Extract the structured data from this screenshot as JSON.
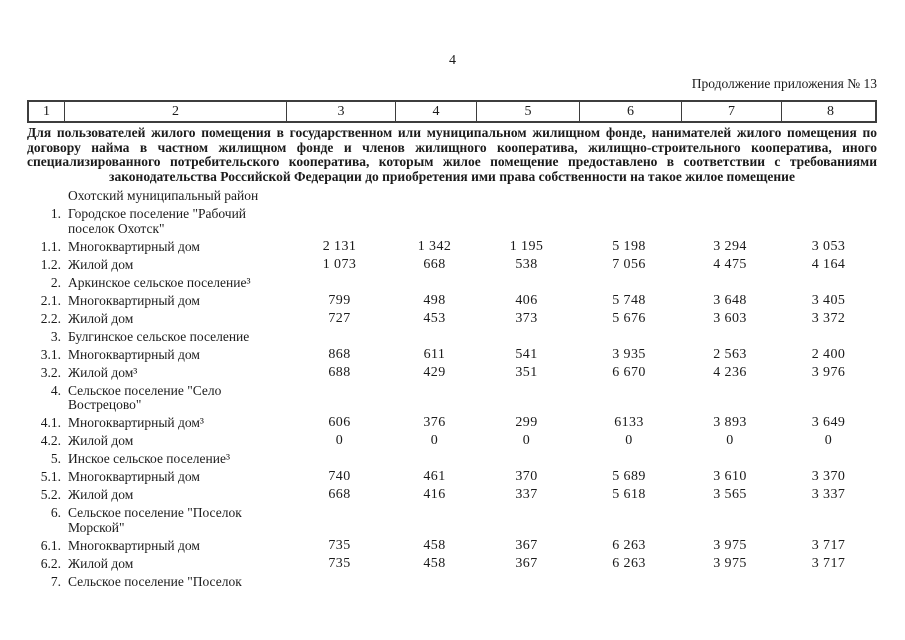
{
  "page": {
    "page_number": "4",
    "continuation_label": "Продолжение приложения № 13"
  },
  "table": {
    "column_numbers": [
      "1",
      "2",
      "3",
      "4",
      "5",
      "6",
      "7",
      "8"
    ],
    "category_note": "Для пользователей жилого помещения в государственном или муниципальном жилищном фонде, нанимателей жилого помещения по договору найма в частном жилищном фонде и членов жилищного кооператива, жилищно-строительного кооператива, иного специализированного потребительского кооператива, которым жилое помещение предоставлено в соответствии с требованиями законодательства Российской Федерации до приобретения ими права собственности на такое жилое помещение",
    "rows": [
      {
        "num": "",
        "name": "Охотский муниципальный район",
        "values": [
          "",
          "",
          "",
          "",
          "",
          ""
        ]
      },
      {
        "num": "1.",
        "name": "Городское поселение \"Рабочий поселок Охотск\"",
        "values": [
          "",
          "",
          "",
          "",
          "",
          ""
        ]
      },
      {
        "num": "1.1.",
        "name": "Многоквартирный дом",
        "values": [
          "2 131",
          "1 342",
          "1 195",
          "5 198",
          "3 294",
          "3 053"
        ]
      },
      {
        "num": "1.2.",
        "name": "Жилой дом",
        "values": [
          "1 073",
          "668",
          "538",
          "7 056",
          "4 475",
          "4 164"
        ]
      },
      {
        "num": "2.",
        "name": "Аркинское сельское поселение³",
        "values": [
          "",
          "",
          "",
          "",
          "",
          ""
        ]
      },
      {
        "num": "2.1.",
        "name": "Многоквартирный дом",
        "values": [
          "799",
          "498",
          "406",
          "5 748",
          "3 648",
          "3 405"
        ]
      },
      {
        "num": "2.2.",
        "name": "Жилой дом",
        "values": [
          "727",
          "453",
          "373",
          "5 676",
          "3 603",
          "3 372"
        ]
      },
      {
        "num": "3.",
        "name": "Булгинское сельское поселение",
        "values": [
          "",
          "",
          "",
          "",
          "",
          ""
        ]
      },
      {
        "num": "3.1.",
        "name": "Многоквартирный дом",
        "values": [
          "868",
          "611",
          "541",
          "3 935",
          "2 563",
          "2 400"
        ]
      },
      {
        "num": "3.2.",
        "name": "Жилой дом³",
        "values": [
          "688",
          "429",
          "351",
          "6 670",
          "4 236",
          "3 976"
        ]
      },
      {
        "num": "4.",
        "name": "Сельское поселение \"Село Вострецово\"",
        "values": [
          "",
          "",
          "",
          "",
          "",
          ""
        ]
      },
      {
        "num": "4.1.",
        "name": "Многоквартирный дом³",
        "values": [
          "606",
          "376",
          "299",
          "6133",
          "3 893",
          "3 649"
        ]
      },
      {
        "num": "4.2.",
        "name": "Жилой дом",
        "values": [
          "0",
          "0",
          "0",
          "0",
          "0",
          "0"
        ]
      },
      {
        "num": "5.",
        "name": "Инское сельское поселение³",
        "values": [
          "",
          "",
          "",
          "",
          "",
          ""
        ]
      },
      {
        "num": "5.1.",
        "name": "Многоквартирный дом",
        "values": [
          "740",
          "461",
          "370",
          "5 689",
          "3 610",
          "3 370"
        ]
      },
      {
        "num": "5.2.",
        "name": "Жилой дом",
        "values": [
          "668",
          "416",
          "337",
          "5 618",
          "3 565",
          "3 337"
        ]
      },
      {
        "num": "6.",
        "name": "Сельское поселение \"Поселок Морской\"",
        "values": [
          "",
          "",
          "",
          "",
          "",
          ""
        ]
      },
      {
        "num": "6.1.",
        "name": "Многоквартирный дом",
        "values": [
          "735",
          "458",
          "367",
          "6 263",
          "3 975",
          "3 717"
        ]
      },
      {
        "num": "6.2.",
        "name": "Жилой дом",
        "values": [
          "735",
          "458",
          "367",
          "6 263",
          "3 975",
          "3 717"
        ]
      },
      {
        "num": "7.",
        "name": "Сельское поселение \"Поселок",
        "values": [
          "",
          "",
          "",
          "",
          "",
          ""
        ]
      }
    ]
  }
}
